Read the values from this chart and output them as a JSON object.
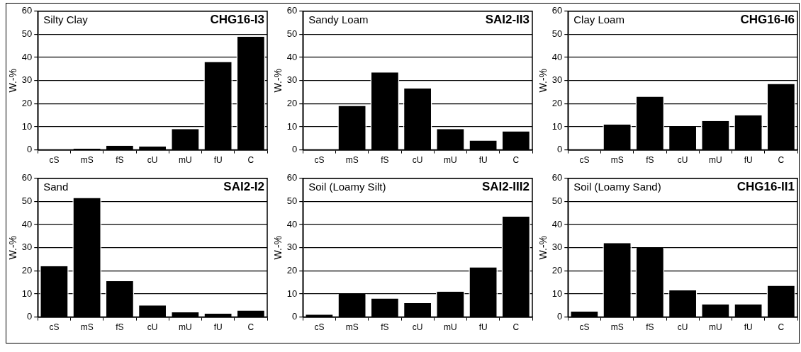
{
  "chart_data": [
    {
      "type": "bar",
      "title": "CHG16-I3",
      "subtitle": "Silty Clay",
      "ylabel": "W.-%",
      "categories": [
        "cS",
        "mS",
        "fS",
        "cU",
        "mU",
        "fU",
        "C"
      ],
      "values": [
        0.2,
        0.5,
        1.8,
        1.5,
        9,
        38,
        49
      ],
      "color": "#000000",
      "ylim": [
        0,
        60
      ],
      "yticks": [
        0,
        10,
        20,
        30,
        40,
        50,
        60
      ],
      "grid": "y"
    },
    {
      "type": "bar",
      "title": "SAI2-II3",
      "subtitle": "Sandy Loam",
      "ylabel": "W.-%",
      "categories": [
        "cS",
        "mS",
        "fS",
        "cU",
        "mU",
        "fU",
        "C"
      ],
      "values": [
        0.2,
        19,
        33.5,
        26.5,
        9,
        4,
        8
      ],
      "color": "#000000",
      "ylim": [
        0,
        60
      ],
      "yticks": [
        0,
        10,
        20,
        30,
        40,
        50,
        60
      ],
      "grid": "y"
    },
    {
      "type": "bar",
      "title": "CHG16-I6",
      "subtitle": "Clay Loam",
      "ylabel": "W.-%",
      "categories": [
        "cS",
        "mS",
        "fS",
        "cU",
        "mU",
        "fU",
        "C"
      ],
      "values": [
        0.2,
        11,
        23,
        10,
        12.5,
        15,
        28.5
      ],
      "color": "#000000",
      "ylim": [
        0,
        60
      ],
      "yticks": [
        0,
        10,
        20,
        30,
        40,
        50,
        60
      ],
      "grid": "y"
    },
    {
      "type": "bar",
      "title": "SAI2-I2",
      "subtitle": "Sand",
      "ylabel": "W.-%",
      "categories": [
        "cS",
        "mS",
        "fS",
        "cU",
        "mU",
        "fU",
        "C"
      ],
      "values": [
        22,
        51.5,
        15.5,
        5,
        2,
        1.5,
        2.8
      ],
      "color": "#000000",
      "ylim": [
        0,
        60
      ],
      "yticks": [
        0,
        10,
        20,
        30,
        40,
        50,
        60
      ],
      "grid": "y"
    },
    {
      "type": "bar",
      "title": "SAI2-III2",
      "subtitle": "Soil (Loamy Silt)",
      "ylabel": "W.-%",
      "categories": [
        "cS",
        "mS",
        "fS",
        "cU",
        "mU",
        "fU",
        "C"
      ],
      "values": [
        1,
        10,
        8,
        6,
        11,
        21.5,
        43.5
      ],
      "color": "#000000",
      "ylim": [
        0,
        60
      ],
      "yticks": [
        0,
        10,
        20,
        30,
        40,
        50,
        60
      ],
      "grid": "y"
    },
    {
      "type": "bar",
      "title": "CHG16-II1",
      "subtitle": "Soil (Loamy Sand)",
      "ylabel": "W.-%",
      "categories": [
        "cS",
        "mS",
        "fS",
        "cU",
        "mU",
        "fU",
        "C"
      ],
      "values": [
        2.3,
        32,
        30,
        11.5,
        5.5,
        5.5,
        13.5
      ],
      "color": "#000000",
      "ylim": [
        0,
        60
      ],
      "yticks": [
        0,
        10,
        20,
        30,
        40,
        50,
        60
      ],
      "grid": "y"
    }
  ]
}
